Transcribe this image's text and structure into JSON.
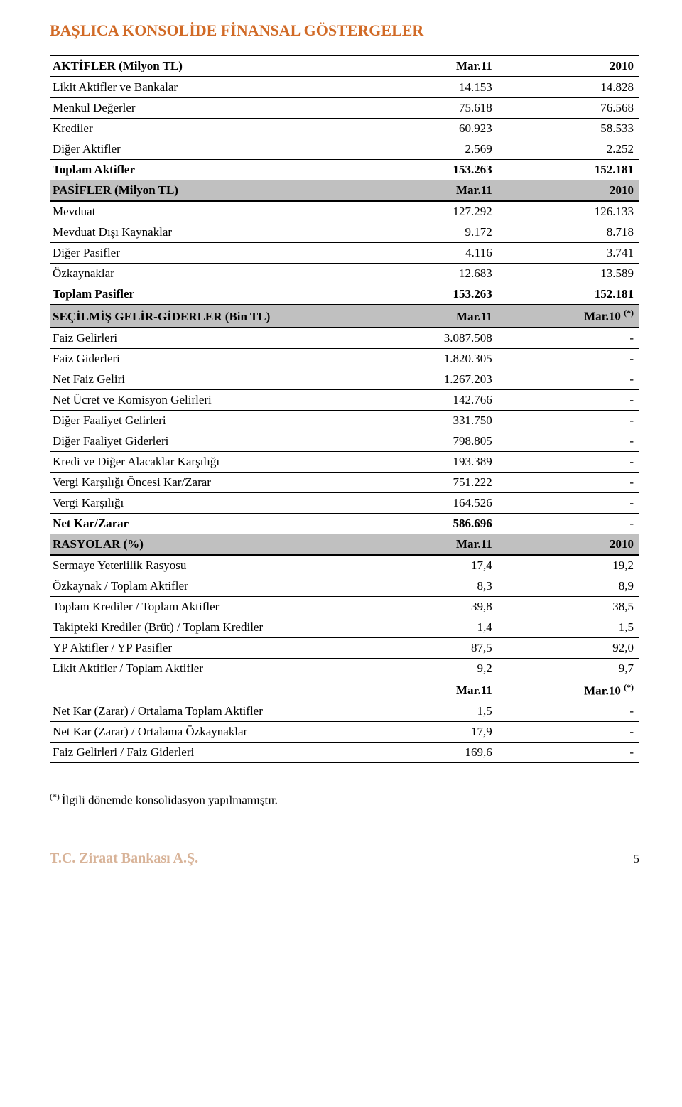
{
  "title": "BAŞLICA KONSOLİDE FİNANSAL GÖSTERGELER",
  "sections": {
    "aktifler": {
      "header": [
        "AKTİFLER (Milyon TL)",
        "Mar.11",
        "2010"
      ],
      "rows": [
        [
          "Likit Aktifler ve Bankalar",
          "14.153",
          "14.828"
        ],
        [
          "Menkul Değerler",
          "75.618",
          "76.568"
        ],
        [
          "Krediler",
          "60.923",
          "58.533"
        ],
        [
          "Diğer Aktifler",
          "2.569",
          "2.252"
        ]
      ],
      "total": [
        "Toplam Aktifler",
        "153.263",
        "152.181"
      ]
    },
    "pasifler": {
      "header": [
        "PASİFLER (Milyon TL)",
        "Mar.11",
        "2010"
      ],
      "rows": [
        [
          "Mevduat",
          "127.292",
          "126.133"
        ],
        [
          "Mevduat Dışı Kaynaklar",
          "9.172",
          "8.718"
        ],
        [
          "Diğer Pasifler",
          "4.116",
          "3.741"
        ],
        [
          "Özkaynaklar",
          "12.683",
          "13.589"
        ]
      ],
      "total": [
        "Toplam Pasifler",
        "153.263",
        "152.181"
      ]
    },
    "gelir_gider": {
      "header_label": "SEÇİLMİŞ GELİR-GİDERLER  (Bin TL)",
      "header_c1": "Mar.11",
      "header_c2_prefix": "Mar.10 ",
      "header_c2_sup": "(*)",
      "rows": [
        [
          "Faiz Gelirleri",
          "3.087.508",
          "-"
        ],
        [
          "Faiz Giderleri",
          "1.820.305",
          "-"
        ],
        [
          "Net Faiz Geliri",
          "1.267.203",
          "-"
        ],
        [
          "Net Ücret ve Komisyon Gelirleri",
          "142.766",
          "-"
        ],
        [
          "Diğer Faaliyet Gelirleri",
          "331.750",
          "-"
        ],
        [
          "Diğer Faaliyet Giderleri",
          "798.805",
          "-"
        ],
        [
          "Kredi ve Diğer Alacaklar Karşılığı",
          "193.389",
          "-"
        ],
        [
          "Vergi Karşılığı Öncesi Kar/Zarar",
          "751.222",
          "-"
        ],
        [
          "Vergi Karşılığı",
          "164.526",
          "-"
        ]
      ],
      "total": [
        "Net Kar/Zarar",
        "586.696",
        "-"
      ]
    },
    "rasyolar": {
      "header": [
        "RASYOLAR (%)",
        "Mar.11",
        "2010"
      ],
      "rows": [
        [
          "Sermaye Yeterlilik Rasyosu",
          "17,4",
          "19,2"
        ],
        [
          "Özkaynak / Toplam Aktifler",
          "8,3",
          "8,9"
        ],
        [
          "Toplam Krediler / Toplam Aktifler",
          "39,8",
          "38,5"
        ],
        [
          "Takipteki Krediler (Brüt) / Toplam Krediler",
          "1,4",
          "1,5"
        ],
        [
          "YP Aktifler / YP Pasifler",
          "87,5",
          "92,0"
        ],
        [
          "Likit Aktifler  / Toplam Aktifler",
          "9,2",
          "9,7"
        ]
      ],
      "sub_header_c1": "Mar.11",
      "sub_header_c2_prefix": "Mar.10 ",
      "sub_header_c2_sup": "(*)",
      "rows2": [
        [
          "Net Kar (Zarar) / Ortalama Toplam Aktifler",
          "1,5",
          "-"
        ],
        [
          "Net Kar (Zarar) / Ortalama Özkaynaklar",
          "17,9",
          "-"
        ],
        [
          "Faiz Gelirleri / Faiz Giderleri",
          "169,6",
          "-"
        ]
      ]
    }
  },
  "footnote_sup": "(*) ",
  "footnote_text": "İlgili dönemde konsolidasyon yapılmamıştır.",
  "footer": {
    "company": "T.C. Ziraat Bankası A.Ş.",
    "page": "5"
  },
  "style": {
    "title_color": "#d16a26",
    "footer_color": "#d8b398",
    "header_shade": "#c0c0c0",
    "font_size_body": 17,
    "font_size_title": 22
  }
}
